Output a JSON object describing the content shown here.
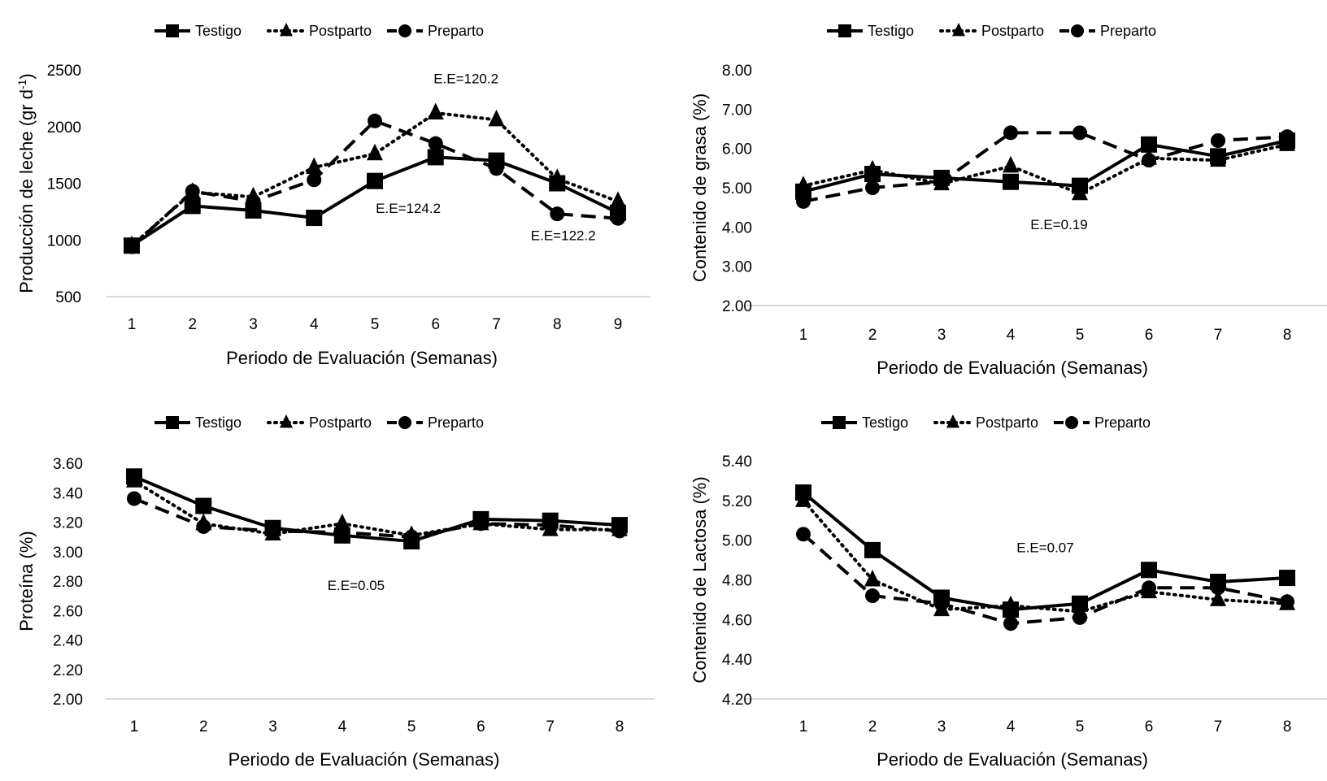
{
  "legend": [
    {
      "name": "Testigo",
      "style": "solid",
      "marker": "square"
    },
    {
      "name": "Postparto",
      "style": "dotted",
      "marker": "triangle"
    },
    {
      "name": "Preparto",
      "style": "dashed",
      "marker": "circle"
    }
  ],
  "colors": {
    "series": "#000000",
    "grid": "#d9d9d9"
  },
  "chart_data": [
    {
      "id": "leche",
      "type": "line",
      "title": "",
      "xlabel": "Periodo de Evaluación (Semanas)",
      "ylabel": "Producción de leche (gr d",
      "ylabel_sup": "-1",
      "ylabel_end": ")",
      "x": [
        1,
        2,
        3,
        4,
        5,
        6,
        7,
        8,
        9
      ],
      "ylim": [
        500,
        2500
      ],
      "yticks": [
        "500",
        "1000",
        "1500",
        "2000",
        "2500"
      ],
      "ytick_values": [
        500,
        1000,
        1500,
        2000,
        2500
      ],
      "grid": "baseline-only",
      "legend_position": "top-center",
      "series": [
        {
          "name": "Testigo",
          "values": [
            950,
            1300,
            1260,
            1195,
            1520,
            1730,
            1700,
            1500,
            1240
          ]
        },
        {
          "name": "Postparto",
          "values": [
            950,
            1420,
            1380,
            1640,
            1760,
            2120,
            2060,
            1540,
            1340
          ]
        },
        {
          "name": "Preparto",
          "values": [
            940,
            1430,
            1340,
            1530,
            2050,
            1850,
            1630,
            1230,
            1190
          ]
        }
      ],
      "annotations": [
        {
          "text": "E.E=120.2",
          "x": 6.5,
          "y": 2380
        },
        {
          "text": "E.E=124.2",
          "x": 5.55,
          "y": 1240
        },
        {
          "text": "E.E=122.2",
          "x": 8.1,
          "y": 1000
        }
      ]
    },
    {
      "id": "grasa",
      "type": "line",
      "title": "",
      "xlabel": "Periodo de Evaluación (Semanas)",
      "ylabel": "Contenido de grasa (%)",
      "x": [
        1,
        2,
        3,
        4,
        5,
        6,
        7,
        8
      ],
      "ylim": [
        2.0,
        8.0
      ],
      "yticks": [
        "2.00",
        "3.00",
        "4.00",
        "5.00",
        "6.00",
        "7.00",
        "8.00"
      ],
      "ytick_values": [
        2,
        3,
        4,
        5,
        6,
        7,
        8
      ],
      "grid": "baseline-only",
      "legend_position": "top-center",
      "series": [
        {
          "name": "Testigo",
          "values": [
            4.9,
            5.35,
            5.25,
            5.15,
            5.05,
            6.1,
            5.8,
            6.2
          ]
        },
        {
          "name": "Postparto",
          "values": [
            5.05,
            5.45,
            5.1,
            5.55,
            4.85,
            5.75,
            5.7,
            6.1
          ]
        },
        {
          "name": "Preparto",
          "values": [
            4.65,
            5.0,
            5.15,
            6.4,
            6.4,
            5.7,
            6.2,
            6.3
          ]
        }
      ],
      "annotations": [
        {
          "text": "E.E=0.19",
          "x": 4.7,
          "y": 3.95
        }
      ]
    },
    {
      "id": "proteina",
      "type": "line",
      "title": "",
      "xlabel": "Periodo de Evaluación (Semanas)",
      "ylabel": "Proteína (%)",
      "x": [
        1,
        2,
        3,
        4,
        5,
        6,
        7,
        8
      ],
      "ylim": [
        2.0,
        3.6
      ],
      "yticks": [
        "2.00",
        "2.20",
        "2.40",
        "2.60",
        "2.80",
        "3.00",
        "3.20",
        "3.40",
        "3.60"
      ],
      "ytick_values": [
        2.0,
        2.2,
        2.4,
        2.6,
        2.8,
        3.0,
        3.2,
        3.4,
        3.6
      ],
      "grid": "baseline-only",
      "legend_position": "top-center",
      "series": [
        {
          "name": "Testigo",
          "values": [
            3.51,
            3.31,
            3.16,
            3.11,
            3.07,
            3.22,
            3.21,
            3.18
          ]
        },
        {
          "name": "Postparto",
          "values": [
            3.48,
            3.19,
            3.12,
            3.19,
            3.11,
            3.19,
            3.15,
            3.15
          ]
        },
        {
          "name": "Preparto",
          "values": [
            3.36,
            3.17,
            3.14,
            3.13,
            3.1,
            3.19,
            3.18,
            3.14
          ]
        }
      ],
      "annotations": [
        {
          "text": "E.E=0.05",
          "x": 4.2,
          "y": 2.74
        }
      ]
    },
    {
      "id": "lactosa",
      "type": "line",
      "title": "",
      "xlabel": "Periodo de Evaluación (Semanas)",
      "ylabel": "Contenido de Lactosa (%)",
      "x": [
        1,
        2,
        3,
        4,
        5,
        6,
        7,
        8
      ],
      "ylim": [
        4.2,
        5.4
      ],
      "yticks": [
        "4.20",
        "4.40",
        "4.60",
        "4.80",
        "5.00",
        "5.20",
        "5.40"
      ],
      "ytick_values": [
        4.2,
        4.4,
        4.6,
        4.8,
        5.0,
        5.2,
        5.4
      ],
      "grid": "baseline-only",
      "legend_position": "top-center",
      "series": [
        {
          "name": "Testigo",
          "values": [
            5.24,
            4.95,
            4.71,
            4.65,
            4.68,
            4.85,
            4.79,
            4.81
          ]
        },
        {
          "name": "Postparto",
          "values": [
            5.2,
            4.8,
            4.65,
            4.67,
            4.64,
            4.74,
            4.7,
            4.68
          ]
        },
        {
          "name": "Preparto",
          "values": [
            5.03,
            4.72,
            4.68,
            4.58,
            4.61,
            4.76,
            4.76,
            4.69
          ]
        }
      ],
      "annotations": [
        {
          "text": "E.E=0.07",
          "x": 4.5,
          "y": 4.94
        }
      ]
    }
  ]
}
